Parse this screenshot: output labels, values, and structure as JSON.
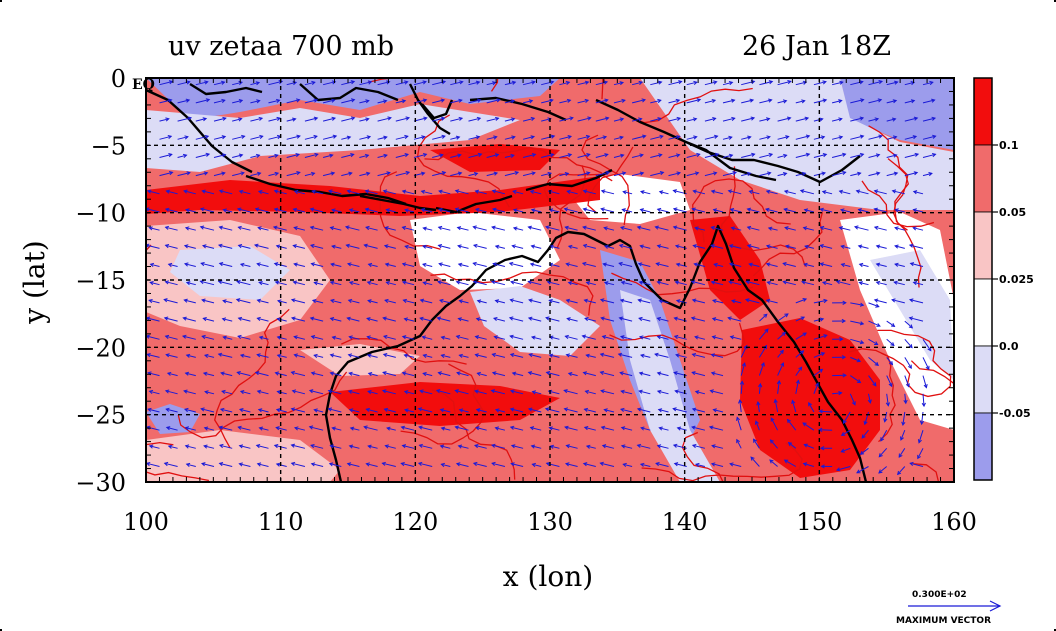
{
  "chart_data": {
    "type": "heatmap",
    "title_left": "uv zetaa 700 mb",
    "title_right": "26 Jan 18Z",
    "xlabel": "x (lon)",
    "ylabel": "y (lat)",
    "xlim": [
      100,
      160
    ],
    "ylim": [
      -30,
      0
    ],
    "x_ticks": [
      "100",
      "110",
      "120",
      "130",
      "140",
      "150",
      "160"
    ],
    "x_tick_values": [
      100,
      110,
      120,
      130,
      140,
      150,
      160
    ],
    "y_ticks": [
      "0",
      "−5",
      "−10",
      "−15",
      "−20",
      "−25",
      "−30"
    ],
    "y_tick_values": [
      0,
      -5,
      -10,
      -15,
      -20,
      -25,
      -30
    ],
    "eq_label": "EQ",
    "grid": true,
    "colorbar": {
      "labels": [
        "0.1",
        "0.05",
        "0.025",
        "0.0",
        "-0.05"
      ],
      "bands": [
        {
          "color": "#f20d0d"
        },
        {
          "color": "#f06b6b"
        },
        {
          "color": "#f9c5c5"
        },
        {
          "color": "#ffffff"
        },
        {
          "color": "#dcdcf6"
        },
        {
          "color": "#9c9cec"
        }
      ]
    },
    "vector_reference": {
      "value_label": "0.300E+02",
      "caption": "MAXIMUM VECTOR"
    },
    "colors": {
      "strong_pos": "#f20d0d",
      "mod_pos": "#f06b6b",
      "weak_pos": "#f9c5c5",
      "neutral": "#ffffff",
      "weak_neg": "#dcdcf6",
      "strong_neg": "#9c9cec",
      "contour": "#e01010",
      "vector": "#1a1ad6",
      "coast": "#000000"
    }
  }
}
